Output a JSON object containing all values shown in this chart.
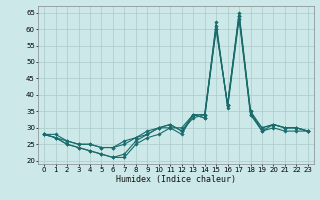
{
  "xlabel": "Humidex (Indice chaleur)",
  "xlim": [
    -0.5,
    23.5
  ],
  "ylim": [
    19,
    67
  ],
  "yticks": [
    20,
    25,
    30,
    35,
    40,
    45,
    50,
    55,
    60,
    65
  ],
  "xticks": [
    0,
    1,
    2,
    3,
    4,
    5,
    6,
    7,
    8,
    9,
    10,
    11,
    12,
    13,
    14,
    15,
    16,
    17,
    18,
    19,
    20,
    21,
    22,
    23
  ],
  "bg_color": "#cce8e8",
  "grid_color": "#aacccc",
  "line_color": "#1a6b6b",
  "lines": [
    [
      28,
      27,
      25,
      24,
      23,
      22,
      21,
      21,
      25,
      27,
      28,
      30,
      28,
      34,
      34,
      60,
      37,
      65,
      35,
      29,
      30,
      29,
      29,
      29
    ],
    [
      28,
      27,
      25,
      24,
      23,
      22,
      21,
      22,
      26,
      28,
      30,
      30,
      30,
      34,
      33,
      62,
      36,
      63,
      34,
      29,
      31,
      30,
      30,
      29
    ],
    [
      28,
      27,
      26,
      25,
      25,
      24,
      24,
      25,
      27,
      29,
      30,
      31,
      29,
      34,
      33,
      60,
      37,
      64,
      35,
      30,
      31,
      30,
      30,
      29
    ],
    [
      28,
      28,
      26,
      25,
      25,
      24,
      24,
      26,
      27,
      28,
      30,
      31,
      29,
      33,
      34,
      61,
      37,
      64,
      34,
      30,
      31,
      30,
      30,
      29
    ]
  ]
}
